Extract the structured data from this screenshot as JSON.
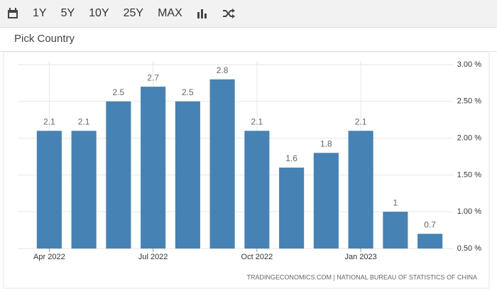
{
  "toolbar": {
    "buttons": [
      "1Y",
      "5Y",
      "10Y",
      "25Y",
      "MAX"
    ]
  },
  "picker": "Pick Country",
  "chart_data": {
    "type": "bar",
    "categories": [
      "Apr 2022",
      null,
      null,
      "Jul 2022",
      null,
      null,
      "Oct 2022",
      null,
      null,
      "Jan 2023",
      null,
      null
    ],
    "values": [
      2.1,
      2.1,
      2.5,
      2.7,
      2.5,
      2.8,
      2.1,
      1.6,
      1.8,
      2.1,
      1,
      0.7
    ],
    "color": "#4682b4",
    "ylim": [
      0.5,
      3
    ],
    "yticks": [
      {
        "value": 0.5,
        "label": "0.50 %"
      },
      {
        "value": 1,
        "label": "1.00 %"
      },
      {
        "value": 1.5,
        "label": "1.50 %"
      },
      {
        "value": 2,
        "label": "2.00 %"
      },
      {
        "value": 2.5,
        "label": "2.50 %"
      },
      {
        "value": 3,
        "label": "3.00 %"
      }
    ],
    "grid": true,
    "source": "TRADINGECONOMICS.COM | NATIONAL BUREAU OF STATISTICS OF CHINA"
  }
}
